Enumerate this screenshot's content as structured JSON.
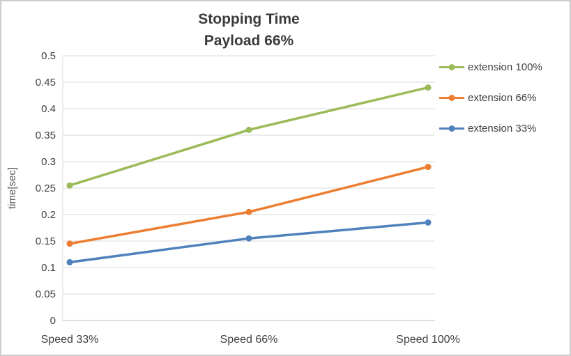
{
  "chart_data": {
    "type": "line",
    "title": "Stopping Time",
    "subtitle": "Payload 66%",
    "categories": [
      "Speed 33%",
      "Speed 66%",
      "Speed 100%"
    ],
    "series": [
      {
        "name": "extension 100%",
        "color": "#9BBB59",
        "values": [
          0.255,
          0.36,
          0.44
        ]
      },
      {
        "name": "extension 66%",
        "color": "#ED7D31",
        "values": [
          0.145,
          0.205,
          0.29
        ]
      },
      {
        "name": "extension 33%",
        "color": "#4F81BD",
        "values": [
          0.11,
          0.155,
          0.185
        ]
      }
    ],
    "xlabel": "",
    "ylabel": "time[sec]",
    "ylim": [
      0,
      0.5
    ],
    "y_ticks": [
      0,
      0.05,
      0.1,
      0.15,
      0.2,
      0.25,
      0.3,
      0.35,
      0.4,
      0.45,
      0.5
    ],
    "grid": true,
    "legend_position": "right",
    "colors": {
      "gridline": "#D9D9D9",
      "axis_line": "#BFBFBF",
      "tick_text": "#404040"
    }
  }
}
